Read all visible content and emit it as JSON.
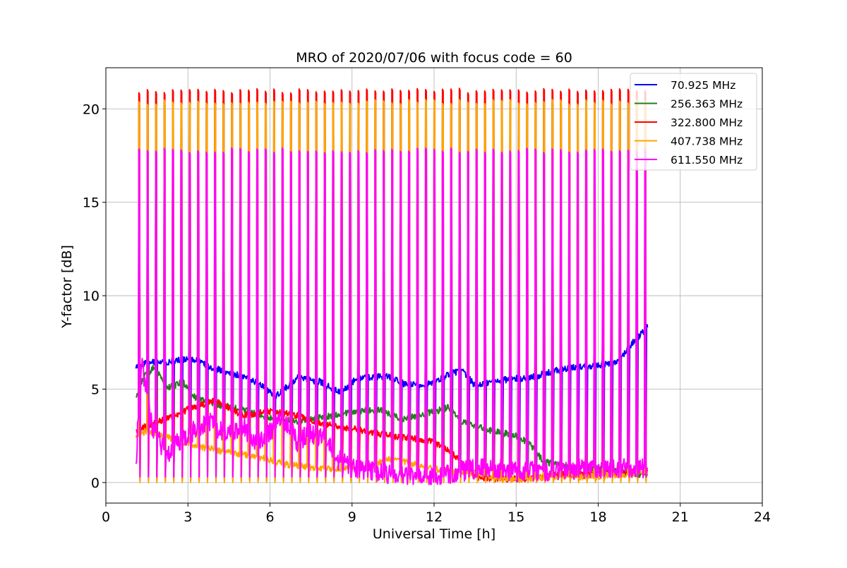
{
  "chart_data": {
    "type": "line",
    "title": "MRO of 2020/07/06 with focus code = 60",
    "xlabel": "Universal Time [h]",
    "ylabel": "Y-factor [dB]",
    "xlim": [
      0,
      24
    ],
    "ylim": [
      -1.1,
      22.2
    ],
    "xticks": [
      "0",
      "3",
      "6",
      "9",
      "12",
      "15",
      "18",
      "21",
      "24"
    ],
    "yticks": [
      "0",
      "5",
      "10",
      "15",
      "20"
    ],
    "grid": true,
    "legend_position": "top-right",
    "x_start": 1.1,
    "x_end": 19.8,
    "calibration_pulse_count": 61,
    "series": [
      {
        "name": "70.925 MHz",
        "color": "#0000ff",
        "baseline_profile": [
          [
            1.1,
            6.1
          ],
          [
            1.5,
            6.4
          ],
          [
            2.5,
            6.5
          ],
          [
            3.2,
            6.6
          ],
          [
            3.8,
            6.2
          ],
          [
            4.5,
            5.9
          ],
          [
            5.5,
            5.4
          ],
          [
            6.2,
            4.6
          ],
          [
            7.0,
            5.6
          ],
          [
            7.8,
            5.4
          ],
          [
            8.6,
            4.8
          ],
          [
            9.2,
            5.6
          ],
          [
            10.3,
            5.7
          ],
          [
            11.0,
            5.2
          ],
          [
            12.0,
            5.3
          ],
          [
            12.5,
            5.8
          ],
          [
            13.0,
            6.0
          ],
          [
            13.5,
            5.2
          ],
          [
            14.5,
            5.5
          ],
          [
            15.5,
            5.6
          ],
          [
            16.5,
            6.0
          ],
          [
            17.3,
            6.2
          ],
          [
            18.0,
            6.3
          ],
          [
            18.7,
            6.4
          ],
          [
            19.2,
            7.4
          ],
          [
            19.8,
            8.3
          ]
        ],
        "pulse_peak": 8.5,
        "pulse_dip": 0.3
      },
      {
        "name": "256.363 MHz",
        "color": "#1f7f1f",
        "baseline_profile": [
          [
            1.1,
            4.6
          ],
          [
            1.4,
            5.7
          ],
          [
            1.8,
            6.2
          ],
          [
            2.2,
            5.0
          ],
          [
            2.8,
            5.4
          ],
          [
            3.3,
            4.5
          ],
          [
            4.0,
            4.2
          ],
          [
            5.0,
            3.9
          ],
          [
            6.0,
            3.4
          ],
          [
            7.0,
            3.3
          ],
          [
            8.0,
            3.5
          ],
          [
            9.0,
            3.8
          ],
          [
            10.0,
            3.9
          ],
          [
            10.8,
            3.4
          ],
          [
            11.5,
            3.6
          ],
          [
            12.5,
            4.0
          ],
          [
            13.0,
            3.3
          ],
          [
            14.0,
            2.8
          ],
          [
            15.0,
            2.5
          ],
          [
            15.5,
            2.1
          ],
          [
            16.0,
            1.1
          ],
          [
            17.0,
            0.8
          ],
          [
            18.0,
            0.8
          ],
          [
            19.0,
            0.5
          ],
          [
            19.8,
            0.4
          ]
        ],
        "pulse_peak": 20.5,
        "pulse_dip": 0.2
      },
      {
        "name": "322.800 MHz",
        "color": "#ff0000",
        "baseline_profile": [
          [
            1.1,
            2.8
          ],
          [
            2.0,
            3.3
          ],
          [
            3.0,
            3.9
          ],
          [
            4.0,
            4.4
          ],
          [
            5.0,
            3.6
          ],
          [
            6.0,
            3.8
          ],
          [
            7.0,
            3.6
          ],
          [
            8.0,
            3.1
          ],
          [
            9.0,
            2.9
          ],
          [
            10.0,
            2.6
          ],
          [
            11.0,
            2.4
          ],
          [
            12.0,
            2.2
          ],
          [
            12.8,
            1.4
          ],
          [
            13.5,
            0.3
          ],
          [
            14.5,
            0.2
          ],
          [
            15.5,
            0.2
          ],
          [
            16.5,
            0.4
          ],
          [
            18.0,
            0.5
          ],
          [
            19.0,
            0.6
          ],
          [
            19.8,
            0.6
          ]
        ],
        "pulse_peak": 21.1,
        "pulse_dip": 0.1
      },
      {
        "name": "407.738 MHz",
        "color": "#ffa500",
        "baseline_profile": [
          [
            1.1,
            2.4
          ],
          [
            1.5,
            2.8
          ],
          [
            2.5,
            2.3
          ],
          [
            3.5,
            1.9
          ],
          [
            4.5,
            1.6
          ],
          [
            5.5,
            1.4
          ],
          [
            6.5,
            1.0
          ],
          [
            7.5,
            0.8
          ],
          [
            8.5,
            0.7
          ],
          [
            9.5,
            0.8
          ],
          [
            10.5,
            1.3
          ],
          [
            11.5,
            0.9
          ],
          [
            12.5,
            0.6
          ],
          [
            13.5,
            0.5
          ],
          [
            14.5,
            0.2
          ],
          [
            15.5,
            0.2
          ],
          [
            16.5,
            0.3
          ],
          [
            17.5,
            0.3
          ],
          [
            18.5,
            0.4
          ],
          [
            19.8,
            0.5
          ]
        ],
        "pulse_peak": 20.5,
        "pulse_dip": 0.0
      },
      {
        "name": "611.550 MHz",
        "color": "#ff00ff",
        "baseline_profile": [
          [
            1.1,
            1.0
          ],
          [
            1.3,
            6.5
          ],
          [
            1.7,
            3.0
          ],
          [
            2.2,
            1.5
          ],
          [
            3.0,
            2.6
          ],
          [
            3.8,
            3.2
          ],
          [
            4.5,
            2.5
          ],
          [
            5.0,
            3.0
          ],
          [
            5.5,
            2.2
          ],
          [
            6.0,
            2.7
          ],
          [
            6.5,
            3.4
          ],
          [
            7.0,
            2.2
          ],
          [
            7.5,
            2.6
          ],
          [
            8.0,
            2.3
          ],
          [
            8.5,
            1.2
          ],
          [
            9.0,
            0.8
          ],
          [
            10.0,
            0.5
          ],
          [
            11.0,
            0.4
          ],
          [
            12.0,
            0.2
          ],
          [
            13.0,
            0.6
          ],
          [
            14.0,
            0.8
          ],
          [
            15.0,
            0.6
          ],
          [
            16.0,
            0.6
          ],
          [
            17.0,
            0.7
          ],
          [
            18.0,
            0.8
          ],
          [
            19.8,
            0.8
          ]
        ],
        "pulse_peak": 17.9,
        "pulse_dip": 0.3
      }
    ]
  }
}
